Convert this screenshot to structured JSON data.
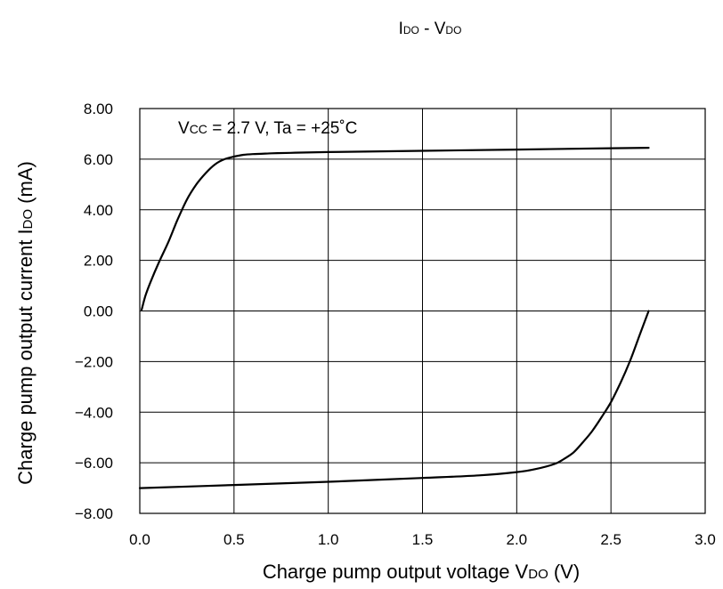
{
  "chart_data": {
    "type": "line",
    "title": {
      "main": "I",
      "main_sub": "DO",
      "sep": " - V",
      "sep_sub": "DO"
    },
    "annotation": {
      "v": "V",
      "v_sub": "CC",
      "rest": " = 2.7 V, Ta = +25˚C"
    },
    "xlabel": {
      "pre": "Charge pump output voltage V",
      "sub": "DO",
      "post": " (V)"
    },
    "ylabel": {
      "pre": "Charge pump output current I",
      "sub": "DO",
      "post": " (mA)"
    },
    "xlim": [
      0.0,
      3.0
    ],
    "ylim": [
      -8.0,
      8.0
    ],
    "x_ticks": [
      0.0,
      0.5,
      1.0,
      1.5,
      2.0,
      2.5,
      3.0
    ],
    "x_tick_labels": [
      "0.0",
      "0.5",
      "1.0",
      "1.5",
      "2.0",
      "2.5",
      "3.0"
    ],
    "y_ticks": [
      8.0,
      6.0,
      4.0,
      2.0,
      0.0,
      -2.0,
      -4.0,
      -6.0,
      -8.0
    ],
    "y_tick_labels": [
      "8.00",
      "6.00",
      "4.00",
      "2.00",
      "0.00",
      "−2.00",
      "−4.00",
      "−6.00",
      "−8.00"
    ],
    "grid": true,
    "series": [
      {
        "points": [
          [
            0.01,
            0.05
          ],
          [
            0.03,
            0.6
          ],
          [
            0.06,
            1.2
          ],
          [
            0.1,
            1.9
          ],
          [
            0.15,
            2.7
          ],
          [
            0.2,
            3.6
          ],
          [
            0.25,
            4.4
          ],
          [
            0.3,
            5.0
          ],
          [
            0.35,
            5.45
          ],
          [
            0.4,
            5.8
          ],
          [
            0.45,
            6.0
          ],
          [
            0.5,
            6.1
          ],
          [
            0.55,
            6.17
          ],
          [
            0.6,
            6.2
          ],
          [
            0.7,
            6.23
          ],
          [
            0.8,
            6.25
          ],
          [
            1.0,
            6.28
          ],
          [
            1.5,
            6.33
          ],
          [
            2.0,
            6.38
          ],
          [
            2.5,
            6.43
          ],
          [
            2.7,
            6.45
          ]
        ],
        "color": "#000000"
      },
      {
        "points": [
          [
            0.0,
            -7.0
          ],
          [
            0.5,
            -6.88
          ],
          [
            1.0,
            -6.75
          ],
          [
            1.5,
            -6.6
          ],
          [
            1.8,
            -6.5
          ],
          [
            2.0,
            -6.37
          ],
          [
            2.1,
            -6.25
          ],
          [
            2.2,
            -6.05
          ],
          [
            2.25,
            -5.85
          ],
          [
            2.3,
            -5.6
          ],
          [
            2.35,
            -5.2
          ],
          [
            2.4,
            -4.75
          ],
          [
            2.45,
            -4.2
          ],
          [
            2.5,
            -3.6
          ],
          [
            2.55,
            -2.85
          ],
          [
            2.6,
            -2.0
          ],
          [
            2.65,
            -1.0
          ],
          [
            2.7,
            0.0
          ]
        ],
        "color": "#000000"
      }
    ]
  }
}
